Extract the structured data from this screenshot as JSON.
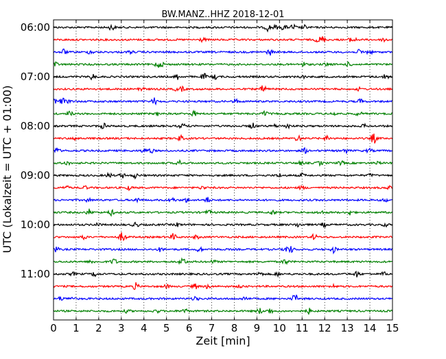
{
  "chart_data": {
    "type": "line",
    "title": "BW.MANZ..HHZ 2018-12-01",
    "xlabel": "Zeit  [min]",
    "ylabel": "UTC (Lokalzeit = UTC + 01:00)",
    "xlim": [
      0,
      15
    ],
    "x_ticks": [
      "0",
      "1",
      "2",
      "3",
      "4",
      "5",
      "6",
      "7",
      "8",
      "9",
      "10",
      "11",
      "12",
      "13",
      "14",
      "15"
    ],
    "y_ticks": [
      "06:00",
      "07:00",
      "08:00",
      "09:00",
      "10:00",
      "11:00"
    ],
    "grid": "vertical dotted at each minute",
    "row_interval_minutes": 15,
    "row_colors": [
      "#000000",
      "#ff0000",
      "#0000ff",
      "#008000"
    ],
    "series": [
      {
        "start": "06:00",
        "color": "#000000"
      },
      {
        "start": "06:15",
        "color": "#ff0000"
      },
      {
        "start": "06:30",
        "color": "#0000ff"
      },
      {
        "start": "06:45",
        "color": "#008000"
      },
      {
        "start": "07:00",
        "color": "#000000"
      },
      {
        "start": "07:15",
        "color": "#ff0000"
      },
      {
        "start": "07:30",
        "color": "#0000ff"
      },
      {
        "start": "07:45",
        "color": "#008000"
      },
      {
        "start": "08:00",
        "color": "#000000"
      },
      {
        "start": "08:15",
        "color": "#ff0000"
      },
      {
        "start": "08:30",
        "color": "#0000ff"
      },
      {
        "start": "08:45",
        "color": "#008000"
      },
      {
        "start": "09:00",
        "color": "#000000"
      },
      {
        "start": "09:15",
        "color": "#ff0000"
      },
      {
        "start": "09:30",
        "color": "#0000ff"
      },
      {
        "start": "09:45",
        "color": "#008000"
      },
      {
        "start": "10:00",
        "color": "#000000"
      },
      {
        "start": "10:15",
        "color": "#ff0000"
      },
      {
        "start": "10:30",
        "color": "#0000ff"
      },
      {
        "start": "10:45",
        "color": "#008000"
      },
      {
        "start": "11:00",
        "color": "#000000"
      },
      {
        "start": "11:15",
        "color": "#ff0000"
      },
      {
        "start": "11:30",
        "color": "#0000ff"
      },
      {
        "start": "11:45",
        "color": "#008000"
      }
    ]
  }
}
